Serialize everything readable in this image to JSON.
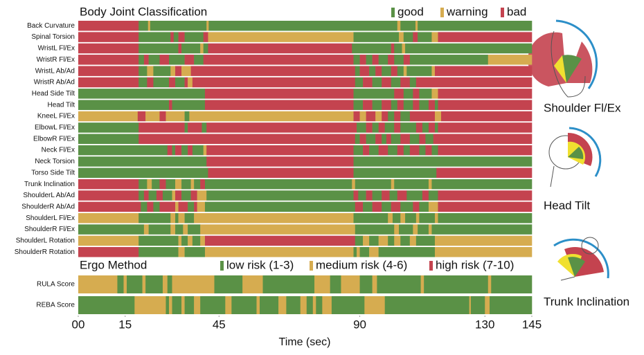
{
  "chart_data": [
    {
      "type": "timeline",
      "title": "Body Joint Classification",
      "xlim": [
        0,
        145
      ],
      "legend": [
        {
          "name": "good",
          "color": "#5a9146"
        },
        {
          "name": "warning",
          "color": "#d6ac50"
        },
        {
          "name": "bad",
          "color": "#c4434f"
        }
      ],
      "rows": [
        {
          "name": "Back Curvature",
          "starts": [
            0,
            19.3,
            22.3,
            23,
            41,
            41.7,
            102,
            103,
            107.8,
            108.5
          ],
          "states": [
            "bad",
            "good",
            "warning",
            "good",
            "warning",
            "good",
            "warning",
            "good",
            "warning",
            "good"
          ]
        },
        {
          "name": "Spinal Torsion",
          "starts": [
            0,
            19.3,
            29.5,
            30.5,
            32,
            34,
            40,
            41.5,
            88,
            102.5,
            104,
            107,
            108.5,
            113,
            115
          ],
          "states": [
            "bad",
            "good",
            "bad",
            "good",
            "bad",
            "good",
            "bad",
            "warning",
            "good",
            "warning",
            "good",
            "bad",
            "good",
            "warning",
            "bad"
          ]
        },
        {
          "name": "WristL Fl/Ex",
          "starts": [
            0,
            19.3,
            32,
            33,
            39,
            40,
            41.5,
            87.5,
            100,
            101,
            103.5,
            104.5
          ],
          "states": [
            "bad",
            "good",
            "bad",
            "good",
            "warning",
            "good",
            "bad",
            "good",
            "bad",
            "good",
            "warning",
            "good"
          ]
        },
        {
          "name": "WristR Fl/Ex",
          "starts": [
            0,
            19.3,
            21,
            22.5,
            26,
            29,
            34,
            37,
            40,
            88,
            90,
            92,
            94,
            96,
            99,
            101,
            104,
            106,
            131
          ],
          "states": [
            "bad",
            "good",
            "bad",
            "good",
            "bad",
            "good",
            "bad",
            "good",
            "bad",
            "good",
            "bad",
            "good",
            "bad",
            "good",
            "bad",
            "good",
            "bad",
            "good",
            "warning"
          ]
        },
        {
          "name": "WristL Ab/Ad",
          "starts": [
            0,
            19.3,
            22,
            24,
            29.5,
            31,
            33,
            36,
            88.5,
            90,
            93,
            95,
            97,
            100,
            102,
            104,
            105,
            113,
            114
          ],
          "states": [
            "bad",
            "good",
            "warning",
            "good",
            "warning",
            "bad",
            "warning",
            "bad",
            "good",
            "bad",
            "good",
            "bad",
            "good",
            "bad",
            "good",
            "warning",
            "good",
            "warning",
            "bad"
          ]
        },
        {
          "name": "WristR Ab/Ad",
          "starts": [
            0,
            19.3,
            22,
            24,
            29,
            31,
            34,
            35,
            36.5,
            88.5,
            91,
            94,
            97,
            100,
            103,
            106,
            108
          ],
          "states": [
            "bad",
            "good",
            "bad",
            "good",
            "bad",
            "good",
            "bad",
            "warning",
            "bad",
            "good",
            "bad",
            "good",
            "bad",
            "good",
            "bad",
            "good",
            "bad"
          ]
        },
        {
          "name": "Head Side Tilt",
          "starts": [
            0,
            40.5,
            88,
            101,
            104,
            107,
            109,
            113,
            115
          ],
          "states": [
            "good",
            "bad",
            "good",
            "bad",
            "good",
            "bad",
            "good",
            "warning",
            "bad"
          ]
        },
        {
          "name": "Head Tilt",
          "starts": [
            0,
            29,
            30,
            40.5,
            88,
            91,
            94,
            97,
            100,
            102,
            104,
            107,
            109,
            112,
            114,
            115
          ],
          "states": [
            "good",
            "bad",
            "good",
            "bad",
            "good",
            "bad",
            "good",
            "bad",
            "good",
            "bad",
            "good",
            "bad",
            "good",
            "bad",
            "good",
            "bad"
          ]
        },
        {
          "name": "KneeL Fl/Ex",
          "starts": [
            0,
            19,
            21.5,
            26,
            28,
            34,
            35.5,
            88,
            90,
            92,
            95,
            97,
            99,
            101,
            103,
            106,
            114,
            116
          ],
          "states": [
            "warning",
            "bad",
            "warning",
            "bad",
            "warning",
            "good",
            "warning",
            "bad",
            "warning",
            "bad",
            "warning",
            "bad",
            "good",
            "bad",
            "good",
            "bad",
            "warning",
            "bad"
          ]
        },
        {
          "name": "ElbowL Fl/Ex",
          "starts": [
            0,
            19.3,
            34,
            35,
            39.5,
            41,
            89,
            92,
            94,
            96,
            98,
            101,
            103,
            108,
            110,
            112,
            114,
            115
          ],
          "states": [
            "good",
            "bad",
            "good",
            "bad",
            "good",
            "bad",
            "good",
            "bad",
            "good",
            "bad",
            "good",
            "bad",
            "good",
            "bad",
            "good",
            "bad",
            "good",
            "bad"
          ]
        },
        {
          "name": "ElbowR Fl/Ex",
          "starts": [
            0,
            19.3,
            88.5,
            90,
            92,
            95,
            97,
            98.5,
            100,
            103,
            106,
            109,
            111,
            113.5
          ],
          "states": [
            "good",
            "bad",
            "good",
            "bad",
            "good",
            "bad",
            "good",
            "bad",
            "good",
            "bad",
            "good",
            "bad",
            "good",
            "bad"
          ]
        },
        {
          "name": "Neck Fl/Ex",
          "starts": [
            0,
            28.5,
            30,
            31,
            33,
            35,
            36.5,
            40,
            41,
            88,
            91,
            93,
            96,
            99,
            102,
            104,
            106,
            109,
            111,
            113,
            115
          ],
          "states": [
            "good",
            "bad",
            "good",
            "bad",
            "good",
            "bad",
            "good",
            "warning",
            "bad",
            "good",
            "bad",
            "good",
            "bad",
            "good",
            "bad",
            "good",
            "bad",
            "good",
            "bad",
            "good",
            "bad"
          ]
        },
        {
          "name": "Neck Torsion",
          "starts": [
            0,
            41,
            88
          ],
          "states": [
            "good",
            "bad",
            "good"
          ]
        },
        {
          "name": "Torso Side Tilt",
          "starts": [
            0,
            41.5,
            88,
            114.5
          ],
          "states": [
            "good",
            "bad",
            "good",
            "bad"
          ]
        },
        {
          "name": "Trunk Inclination",
          "starts": [
            0,
            19.3,
            22,
            23.5,
            26,
            28,
            31,
            33,
            36,
            37,
            39,
            40.5,
            87.5,
            88.5,
            100,
            101,
            112,
            113
          ],
          "states": [
            "bad",
            "good",
            "warning",
            "good",
            "bad",
            "good",
            "warning",
            "good",
            "warning",
            "good",
            "bad",
            "good",
            "warning",
            "good",
            "warning",
            "good",
            "warning",
            "good"
          ]
        },
        {
          "name": "ShoulderL Ab/Ad",
          "starts": [
            0,
            19.3,
            21,
            22.5,
            25,
            27,
            30,
            31,
            33,
            36,
            38,
            41,
            88,
            89.5,
            92,
            94,
            97,
            99.5,
            102,
            105,
            110,
            112,
            115
          ],
          "states": [
            "bad",
            "good",
            "bad",
            "good",
            "bad",
            "good",
            "warning",
            "bad",
            "good",
            "bad",
            "warning",
            "good",
            "bad",
            "good",
            "bad",
            "good",
            "bad",
            "good",
            "bad",
            "good",
            "bad",
            "good",
            "bad"
          ]
        },
        {
          "name": "ShoulderR Ab/Ad",
          "starts": [
            0,
            20,
            22,
            24,
            26,
            31,
            32,
            35,
            37,
            38,
            40.5,
            88.5,
            91,
            94,
            97,
            100,
            103,
            107,
            109,
            112,
            115
          ],
          "states": [
            "bad",
            "good",
            "bad",
            "good",
            "bad",
            "warning",
            "bad",
            "good",
            "bad",
            "warning",
            "good",
            "bad",
            "good",
            "bad",
            "good",
            "bad",
            "good",
            "bad",
            "good",
            "warning",
            "bad"
          ]
        },
        {
          "name": "ShoulderL Fl/Ex",
          "starts": [
            0,
            19.3,
            29.5,
            31,
            32,
            34,
            37,
            88,
            99,
            100.5,
            103,
            104.5,
            108,
            109,
            114,
            115
          ],
          "states": [
            "warning",
            "good",
            "warning",
            "good",
            "warning",
            "good",
            "warning",
            "good",
            "warning",
            "good",
            "warning",
            "good",
            "warning",
            "good",
            "warning",
            "good"
          ]
        },
        {
          "name": "ShoulderR Fl/Ex",
          "starts": [
            0,
            21,
            22.5,
            29.5,
            31,
            33.5,
            35,
            39,
            88.5,
            101,
            102.5,
            107,
            108.5,
            112,
            113
          ],
          "states": [
            "good",
            "warning",
            "good",
            "warning",
            "good",
            "warning",
            "good",
            "warning",
            "good",
            "warning",
            "good",
            "warning",
            "good",
            "warning",
            "good"
          ]
        },
        {
          "name": "ShoulderL Rotation",
          "starts": [
            0,
            19.3,
            32,
            33,
            35,
            36.5,
            39,
            40.5,
            88.5,
            91,
            93,
            96,
            99,
            101,
            103,
            106,
            108,
            114
          ],
          "states": [
            "warning",
            "good",
            "warning",
            "good",
            "warning",
            "good",
            "warning",
            "bad",
            "good",
            "warning",
            "good",
            "warning",
            "good",
            "warning",
            "good",
            "warning",
            "good",
            "warning"
          ]
        },
        {
          "name": "ShoulderR Rotation",
          "starts": [
            0,
            19.3,
            32,
            34,
            40.5,
            88,
            89,
            90,
            93,
            96,
            114
          ],
          "states": [
            "bad",
            "good",
            "warning",
            "good",
            "warning",
            "good",
            "warning",
            "good",
            "warning",
            "good",
            "warning"
          ]
        }
      ]
    },
    {
      "type": "timeline",
      "title": "Ergo Method",
      "xlim": [
        0,
        145
      ],
      "legend": [
        {
          "name": "low risk (1-3)",
          "color": "#5a9146"
        },
        {
          "name": "medium risk (4-6)",
          "color": "#d6ac50"
        },
        {
          "name": "high risk (7-10)",
          "color": "#c4434f"
        }
      ],
      "rows": [
        {
          "name": "RULA Score",
          "starts": [
            0,
            12.5,
            14.5,
            15.5,
            20.5,
            21.5,
            27,
            28.5,
            30,
            43.5,
            52.5,
            59,
            75.5,
            80.5,
            84,
            90,
            94,
            95.5,
            109.5,
            110.5,
            131,
            132
          ],
          "states": [
            "medium risk (4-6)",
            "low risk (1-3)",
            "medium risk (4-6)",
            "low risk (1-3)",
            "medium risk (4-6)",
            "low risk (1-3)",
            "medium risk (4-6)",
            "low risk (1-3)",
            "medium risk (4-6)",
            "low risk (1-3)",
            "medium risk (4-6)",
            "low risk (1-3)",
            "medium risk (4-6)",
            "low risk (1-3)",
            "medium risk (4-6)",
            "low risk (1-3)",
            "medium risk (4-6)",
            "low risk (1-3)",
            "medium risk (4-6)",
            "low risk (1-3)",
            "medium risk (4-6)",
            "low risk (1-3)"
          ]
        },
        {
          "name": "REBA Score",
          "starts": [
            0,
            18,
            28,
            29,
            30,
            33,
            34,
            37,
            39,
            47,
            49,
            57,
            58,
            64,
            66.5,
            71,
            73,
            75,
            76,
            78,
            81,
            91.5,
            98,
            125,
            125.5,
            130,
            131.5
          ],
          "states": [
            "low risk (1-3)",
            "medium risk (4-6)",
            "low risk (1-3)",
            "medium risk (4-6)",
            "low risk (1-3)",
            "medium risk (4-6)",
            "low risk (1-3)",
            "medium risk (4-6)",
            "low risk (1-3)",
            "medium risk (4-6)",
            "low risk (1-3)",
            "medium risk (4-6)",
            "low risk (1-3)",
            "medium risk (4-6)",
            "low risk (1-3)",
            "medium risk (4-6)",
            "low risk (1-3)",
            "medium risk (4-6)",
            "low risk (1-3)",
            "medium risk (4-6)",
            "low risk (1-3)",
            "medium risk (4-6)",
            "low risk (1-3)",
            "medium risk (4-6)",
            "low risk (1-3)",
            "medium risk (4-6)",
            "low risk (1-3)"
          ]
        }
      ],
      "xlabel": "Time (sec)",
      "xticks": [
        {
          "value": 0,
          "label": "00"
        },
        15,
        45,
        90,
        130,
        145
      ]
    }
  ],
  "illustrations": [
    "Shoulder Fl/Ex",
    "Head Tilt",
    "Trunk Inclination"
  ]
}
